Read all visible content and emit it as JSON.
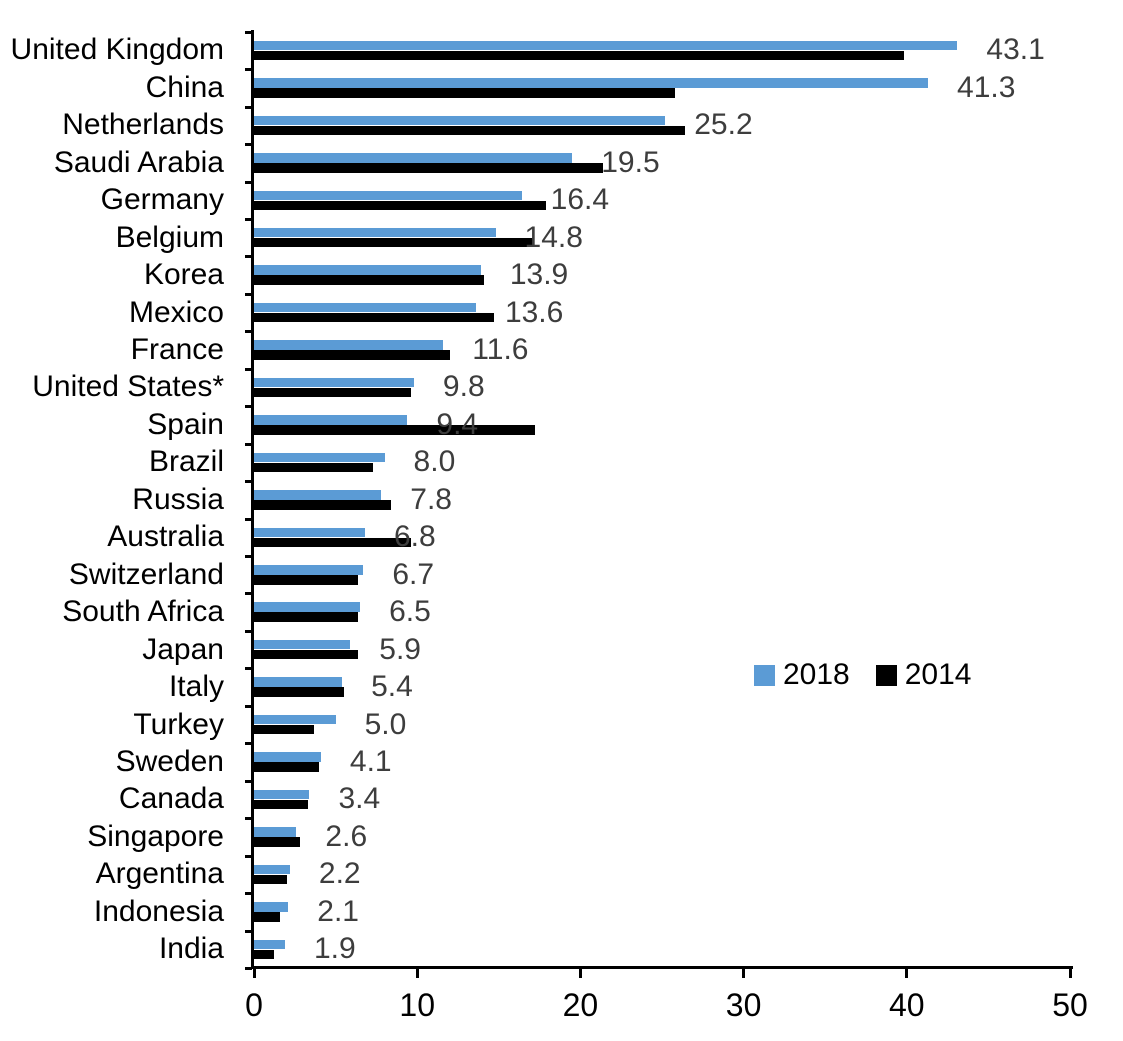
{
  "chart_data": {
    "type": "bar",
    "orientation": "horizontal",
    "title": "",
    "xlabel": "",
    "ylabel": "",
    "xlim": [
      0,
      50
    ],
    "x_ticks": [
      0,
      10,
      20,
      30,
      40,
      50
    ],
    "grid": false,
    "legend_position": "middle-right",
    "categories": [
      "United Kingdom",
      "China",
      "Netherlands",
      "Saudi Arabia",
      "Germany",
      "Belgium",
      "Korea",
      "Mexico",
      "France",
      "United States*",
      "Spain",
      "Brazil",
      "Russia",
      "Australia",
      "Switzerland",
      "South Africa",
      "Japan",
      "Italy",
      "Turkey",
      "Sweden",
      "Canada",
      "Singapore",
      "Argentina",
      "Indonesia",
      "India"
    ],
    "series": [
      {
        "name": "2018",
        "color": "#5B9BD5",
        "values": [
          43.1,
          41.3,
          25.2,
          19.5,
          16.4,
          14.8,
          13.9,
          13.6,
          11.6,
          9.8,
          9.4,
          8.0,
          7.8,
          6.8,
          6.7,
          6.5,
          5.9,
          5.4,
          5.0,
          4.1,
          3.4,
          2.6,
          2.2,
          2.1,
          1.9
        ]
      },
      {
        "name": "2014",
        "color": "#000000",
        "values": [
          39.8,
          25.8,
          26.4,
          21.4,
          17.9,
          17.1,
          14.1,
          14.7,
          12.0,
          9.6,
          17.2,
          7.3,
          8.4,
          9.6,
          6.4,
          6.4,
          6.4,
          5.5,
          3.7,
          4.0,
          3.3,
          2.8,
          2.0,
          1.6,
          1.2
        ]
      }
    ],
    "data_labels": {
      "series": "2018",
      "values": [
        "43.1",
        "41.3",
        "25.2",
        "19.5",
        "16.4",
        "14.8",
        "13.9",
        "13.6",
        "11.6",
        "9.8",
        "9.4",
        "8.0",
        "7.8",
        "6.8",
        "6.7",
        "6.5",
        "5.9",
        "5.4",
        "5.0",
        "4.1",
        "3.4",
        "2.6",
        "2.2",
        "2.1",
        "1.9"
      ],
      "color": "#3D3D3D"
    }
  },
  "colors": {
    "background": "#FFFFFF",
    "axis": "#000000",
    "series_2018": "#5B9BD5",
    "series_2014": "#000000",
    "value_labels": "#3D3D3D"
  }
}
